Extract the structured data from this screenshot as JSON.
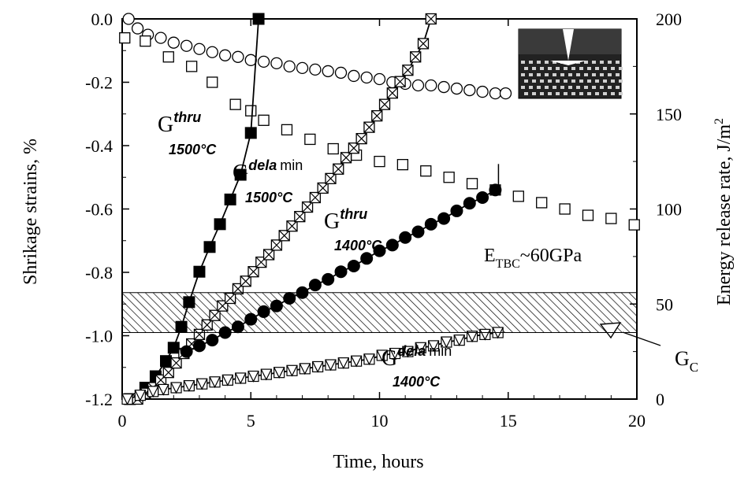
{
  "chart_data": {
    "type": "scatter",
    "x_axis": {
      "label": "Time, hours",
      "range": [
        0,
        20
      ],
      "ticks": [
        0,
        5,
        10,
        15,
        20
      ],
      "tick_labels": [
        "0",
        "5",
        "10",
        "15",
        "20"
      ]
    },
    "y_axis_left": {
      "label": "Shrikage strains, %",
      "range": [
        -1.2,
        0.0
      ],
      "ticks": [
        -1.2,
        -1.0,
        -0.8,
        -0.6,
        -0.4,
        -0.2,
        0.0
      ],
      "tick_labels": [
        "-1.2",
        "-1.0",
        "-0.8",
        "-0.6",
        "-0.4",
        "-0.2",
        "0.0"
      ]
    },
    "y_axis_right": {
      "label": "Energy release rate, J/m",
      "label_superscript": "2",
      "range": [
        0,
        200
      ],
      "ticks": [
        0,
        50,
        100,
        150,
        200
      ],
      "tick_labels": [
        "0",
        "50",
        "100",
        "150",
        "200"
      ]
    },
    "gc_band": {
      "min": 35,
      "max": 56
    },
    "annotations": {
      "g_thru_1500": {
        "base": "G",
        "sup": "thru",
        "sub": "1500°C"
      },
      "g_dela_1500": {
        "base": "G",
        "sup": "dela",
        "sup2": "min",
        "sub": "1500°C"
      },
      "g_thru_1400": {
        "base": "G",
        "sup": "thru",
        "sub": "1400°C"
      },
      "g_dela_1400": {
        "base": "G",
        "sup": "dela",
        "sup2": "min",
        "sub": "1400°C"
      },
      "etbc": {
        "prefix": "E",
        "sub": "TBC",
        "suffix": "~60GPa"
      },
      "gc": {
        "base": "G",
        "sub": "C"
      }
    },
    "series": [
      {
        "marker": "open-circle",
        "axis": "left",
        "x": [
          0.25,
          0.6,
          1.0,
          1.5,
          2.0,
          2.5,
          3.0,
          3.5,
          4.0,
          4.5,
          5.0,
          5.5,
          6.0,
          6.5,
          7.0,
          7.5,
          8.0,
          8.5,
          9.0,
          9.5,
          10.0,
          10.5,
          11.0,
          11.5,
          12.0,
          12.5,
          13.0,
          13.5,
          14.0,
          14.5,
          14.9
        ],
        "y": [
          0.0,
          -0.03,
          -0.05,
          -0.06,
          -0.075,
          -0.085,
          -0.095,
          -0.105,
          -0.115,
          -0.12,
          -0.13,
          -0.135,
          -0.14,
          -0.15,
          -0.155,
          -0.16,
          -0.165,
          -0.17,
          -0.18,
          -0.185,
          -0.19,
          -0.2,
          -0.205,
          -0.21,
          -0.21,
          -0.215,
          -0.22,
          -0.225,
          -0.23,
          -0.235,
          -0.235
        ]
      },
      {
        "marker": "open-square",
        "axis": "left",
        "x": [
          0.1,
          0.9,
          1.8,
          2.7,
          3.5,
          4.4,
          5.0,
          5.5,
          6.4,
          7.3,
          8.2,
          9.1,
          10.0,
          10.9,
          11.8,
          12.7,
          13.6,
          14.5,
          15.4,
          16.3,
          17.2,
          18.1,
          19.0,
          19.9
        ],
        "y": [
          -0.06,
          -0.07,
          -0.12,
          -0.15,
          -0.2,
          -0.27,
          -0.29,
          -0.32,
          -0.35,
          -0.38,
          -0.41,
          -0.43,
          -0.45,
          -0.46,
          -0.48,
          -0.5,
          -0.52,
          -0.54,
          -0.56,
          -0.58,
          -0.6,
          -0.62,
          -0.63,
          -0.65
        ]
      },
      {
        "marker": "filled-square",
        "axis": "right",
        "x": [
          0.3,
          0.9,
          1.3,
          1.7,
          2.0,
          2.3,
          2.6,
          3.0,
          3.4,
          3.8,
          4.2,
          4.6,
          5.0,
          5.3
        ],
        "y": [
          0,
          6,
          12,
          20,
          27,
          38,
          51,
          67,
          80,
          92,
          105,
          118,
          140,
          200
        ]
      },
      {
        "marker": "crossed-square",
        "axis": "right",
        "x": [
          0.6,
          0.9,
          1.2,
          1.5,
          1.8,
          2.1,
          2.4,
          2.7,
          3.0,
          3.3,
          3.6,
          3.9,
          4.2,
          4.5,
          4.8,
          5.1,
          5.4,
          5.7,
          6.0,
          6.3,
          6.6,
          6.9,
          7.2,
          7.5,
          7.8,
          8.1,
          8.4,
          8.7,
          9.0,
          9.3,
          9.6,
          9.9,
          10.2,
          10.5,
          10.8,
          11.1,
          11.4,
          11.7,
          12.0
        ],
        "y": [
          0,
          3,
          6,
          10,
          14,
          19,
          24,
          29,
          34,
          39,
          44,
          49,
          53,
          58,
          62,
          67,
          72,
          76,
          81,
          86,
          91,
          96,
          101,
          106,
          111,
          116,
          121,
          127,
          132,
          137,
          143,
          149,
          155,
          161,
          167,
          173,
          180,
          187,
          200
        ]
      },
      {
        "marker": "filled-circle",
        "axis": "right",
        "x": [
          2.5,
          3.0,
          3.5,
          4.0,
          4.5,
          5.0,
          5.5,
          6.0,
          6.5,
          7.0,
          7.5,
          8.0,
          8.5,
          9.0,
          9.5,
          10.0,
          10.5,
          11.0,
          11.5,
          12.0,
          12.5,
          13.0,
          13.5,
          14.0,
          14.5
        ],
        "y": [
          25,
          28,
          31,
          35,
          38,
          42,
          46,
          49,
          53,
          56,
          60,
          63,
          67,
          70,
          74,
          78,
          81,
          85,
          88,
          92,
          95,
          99,
          103,
          106,
          110
        ]
      },
      {
        "marker": "open-triangle-down",
        "axis": "right",
        "x": [
          0.2,
          0.7,
          1.2,
          1.6,
          2.1,
          2.6,
          3.1,
          3.6,
          4.1,
          4.6,
          5.1,
          5.6,
          6.1,
          6.6,
          7.1,
          7.6,
          8.1,
          8.6,
          9.1,
          9.6,
          10.1,
          10.6,
          11.1,
          11.6,
          12.1,
          12.6,
          13.1,
          13.6,
          14.1,
          14.6
        ],
        "y": [
          0,
          2,
          4,
          5,
          6,
          7,
          8,
          9,
          10,
          11,
          12,
          13,
          14,
          15,
          16,
          17,
          18,
          19,
          20,
          21,
          23,
          24,
          25,
          27,
          28,
          30,
          31,
          33,
          34,
          35
        ]
      }
    ]
  }
}
